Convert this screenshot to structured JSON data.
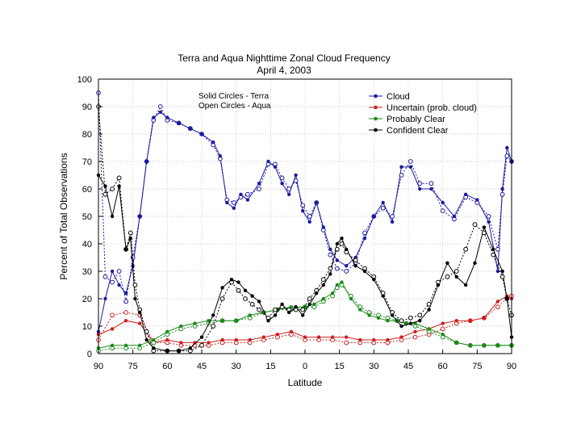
{
  "chart_data": {
    "type": "line",
    "title": "Terra and Aqua Nighttime Zonal Cloud Frequency",
    "subtitle": "April 4, 2003",
    "xlabel": "Latitude",
    "ylabel": "Percent of Total Observations",
    "xlim": [
      -90,
      90
    ],
    "ylim": [
      0,
      100
    ],
    "x_ticks": [
      -90,
      -75,
      -60,
      -45,
      -30,
      -15,
      0,
      15,
      30,
      45,
      60,
      75,
      90
    ],
    "x_tick_labels": [
      "90",
      "75",
      "60",
      "45",
      "30",
      "15",
      "0",
      "15",
      "30",
      "45",
      "60",
      "75",
      "90"
    ],
    "y_ticks": [
      0,
      10,
      20,
      30,
      40,
      50,
      60,
      70,
      80,
      90,
      100
    ],
    "y_tick_labels": [
      "0",
      "10",
      "20",
      "30",
      "40",
      "50",
      "60",
      "70",
      "80",
      "90",
      "100"
    ],
    "grid": true,
    "annotation": [
      "Solid Circles - Terra",
      "Open Circles - Aqua"
    ],
    "legend_position": "top-right",
    "series": [
      {
        "name": "Cloud",
        "color": "#1a1aa0",
        "x": [
          -90,
          -87,
          -84,
          -81,
          -78,
          -75,
          -72,
          -69,
          -66,
          -63,
          -60,
          -55,
          -50,
          -45,
          -40,
          -37,
          -34,
          -31,
          -28,
          -25,
          -20,
          -16,
          -13,
          -10,
          -7,
          -4,
          -1,
          2,
          5,
          8,
          11,
          14,
          18,
          22,
          26,
          30,
          34,
          38,
          42,
          46,
          50,
          55,
          60,
          65,
          70,
          75,
          80,
          84,
          86,
          88,
          90
        ],
        "terra": [
          8,
          20,
          30,
          25,
          22,
          32,
          50,
          70,
          86,
          88,
          86,
          84,
          82,
          80,
          77,
          72,
          55,
          53,
          58,
          56,
          62,
          70,
          68,
          62,
          58,
          65,
          52,
          48,
          55,
          46,
          38,
          34,
          32,
          35,
          42,
          50,
          55,
          48,
          68,
          68,
          60,
          60,
          55,
          50,
          58,
          56,
          48,
          30,
          60,
          75,
          70
        ],
        "aqua": [
          95,
          28,
          26,
          30,
          19,
          35,
          50,
          70,
          85,
          90,
          85,
          84,
          82,
          80,
          76,
          71,
          56,
          55,
          57,
          58,
          60,
          69,
          69,
          64,
          60,
          63,
          54,
          50,
          55,
          45,
          36,
          31,
          30,
          33,
          44,
          50,
          53,
          50,
          65,
          70,
          62,
          62,
          52,
          49,
          57,
          55,
          50,
          38,
          58,
          72,
          70
        ]
      },
      {
        "name": "Uncertain (prob. cloud)",
        "color": "#cc2020",
        "x": [
          -90,
          -84,
          -78,
          -72,
          -66,
          -60,
          -54,
          -48,
          -42,
          -36,
          -30,
          -24,
          -18,
          -12,
          -6,
          0,
          6,
          12,
          18,
          24,
          30,
          36,
          42,
          48,
          54,
          60,
          66,
          72,
          78,
          84,
          88,
          90
        ],
        "terra": [
          7,
          9,
          12,
          11,
          4,
          5,
          4,
          4,
          4,
          5,
          5,
          5,
          6,
          7,
          8,
          6,
          6,
          6,
          6,
          5,
          5,
          5,
          6,
          8,
          9,
          11,
          12,
          12,
          13,
          19,
          21,
          20
        ],
        "aqua": [
          5,
          14,
          15,
          14,
          4,
          4,
          3,
          3,
          3,
          4,
          4,
          4,
          5,
          6,
          7,
          5,
          5,
          5,
          4,
          4,
          4,
          4,
          5,
          6,
          7,
          9,
          11,
          12,
          13,
          17,
          20,
          21
        ]
      },
      {
        "name": "Probably Clear",
        "color": "#1a8a1a",
        "x": [
          -90,
          -84,
          -78,
          -72,
          -66,
          -60,
          -54,
          -48,
          -42,
          -36,
          -30,
          -24,
          -18,
          -12,
          -6,
          0,
          4,
          8,
          12,
          14,
          16,
          20,
          24,
          28,
          32,
          36,
          40,
          44,
          48,
          54,
          60,
          66,
          72,
          78,
          84,
          90
        ],
        "terra": [
          2,
          3,
          3,
          3,
          5,
          8,
          10,
          11,
          12,
          12,
          12,
          14,
          15,
          16,
          17,
          17,
          18,
          20,
          22,
          25,
          26,
          20,
          16,
          14,
          13,
          12,
          12,
          11,
          11,
          9,
          7,
          4,
          3,
          3,
          3,
          3
        ],
        "aqua": [
          1,
          2,
          2,
          2,
          4,
          7,
          9,
          10,
          11,
          12,
          12,
          13,
          15,
          16,
          16,
          17,
          17,
          19,
          21,
          24,
          25,
          21,
          17,
          15,
          14,
          13,
          12,
          11,
          10,
          8,
          6,
          4,
          3,
          3,
          3,
          3
        ]
      },
      {
        "name": "Confident Clear",
        "color": "#000000",
        "x": [
          -90,
          -87,
          -84,
          -81,
          -78,
          -76,
          -74,
          -72,
          -69,
          -66,
          -60,
          -55,
          -50,
          -45,
          -40,
          -36,
          -32,
          -29,
          -26,
          -23,
          -20,
          -16,
          -13,
          -10,
          -7,
          -4,
          -1,
          2,
          5,
          8,
          11,
          14,
          16,
          18,
          22,
          26,
          30,
          34,
          38,
          42,
          46,
          50,
          54,
          58,
          62,
          66,
          70,
          74,
          78,
          82,
          86,
          88,
          90
        ],
        "terra": [
          65,
          61,
          50,
          61,
          38,
          42,
          20,
          15,
          5,
          2,
          1,
          1,
          2,
          6,
          14,
          24,
          27,
          26,
          23,
          21,
          19,
          12,
          14,
          18,
          15,
          17,
          14,
          18,
          22,
          25,
          29,
          40,
          42,
          38,
          32,
          30,
          27,
          21,
          14,
          10,
          11,
          12,
          16,
          25,
          33,
          28,
          25,
          33,
          46,
          38,
          30,
          20,
          6
        ],
        "aqua": [
          90,
          58,
          60,
          64,
          38,
          44,
          25,
          16,
          8,
          1,
          1,
          1,
          1,
          3,
          10,
          20,
          26,
          23,
          20,
          18,
          16,
          13,
          16,
          17,
          16,
          16,
          16,
          20,
          23,
          27,
          31,
          38,
          40,
          37,
          34,
          31,
          28,
          22,
          15,
          12,
          13,
          14,
          18,
          26,
          28,
          30,
          38,
          47,
          44,
          36,
          28,
          20,
          14
        ]
      }
    ]
  }
}
